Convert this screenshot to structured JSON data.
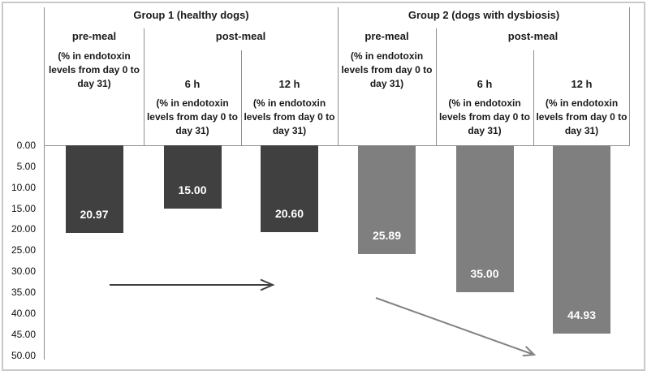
{
  "colors": {
    "group1_bar": "#404040",
    "group2_bar": "#7f7f7f",
    "group1_arrow": "#3f3f3f",
    "group2_arrow": "#828282",
    "bar_value_text": "#ffffff",
    "divider_line": "#8f8f8f",
    "outer_border": "#c9c9c9",
    "text": "#1a1a1a"
  },
  "header": {
    "note": "(% in endotoxin levels from day 0 to day 31)",
    "groups": [
      {
        "title": "Group 1 (healthy dogs)",
        "pre_meal_label": "pre-meal",
        "post_meal_label": "post-meal",
        "h6_label": "6 h",
        "h12_label": "12 h"
      },
      {
        "title": "Group 2 (dogs with dysbiosis)",
        "pre_meal_label": "pre-meal",
        "post_meal_label": "post-meal",
        "h6_label": "6 h",
        "h12_label": "12 h"
      }
    ]
  },
  "chart_data": {
    "type": "bar",
    "title": "",
    "xlabel": "",
    "ylabel": "",
    "value_axis_note": "axis increases downward; bars hang from 0.00 line",
    "ylim": [
      0,
      50
    ],
    "tick_values": [
      0,
      5,
      10,
      15,
      20,
      25,
      30,
      35,
      40,
      45,
      50
    ],
    "yticks": [
      "0.00",
      "5.00",
      "10.00",
      "15.00",
      "20.00",
      "25.00",
      "30.00",
      "35.00",
      "40.00",
      "45.00",
      "50.00"
    ],
    "grid": false,
    "legend": "none",
    "categories": [
      "Group 1 pre-meal",
      "Group 1 post-meal 6 h",
      "Group 1 post-meal 12 h",
      "Group 2 pre-meal",
      "Group 2 post-meal 6 h",
      "Group 2 post-meal 12 h"
    ],
    "series": [
      {
        "name": "Group 1 (healthy dogs)",
        "values": [
          20.97,
          15.0,
          20.6
        ],
        "labels": [
          "20.97",
          "15.00",
          "20.60"
        ],
        "color": "#404040"
      },
      {
        "name": "Group 2 (dogs with dysbiosis)",
        "values": [
          25.89,
          35.0,
          44.93
        ],
        "labels": [
          "25.89",
          "35.00",
          "44.93"
        ],
        "color": "#7f7f7f"
      }
    ],
    "annotations": [
      {
        "type": "arrow",
        "group": "Group 1 (healthy dogs)",
        "direction": "horizontal pointing right"
      },
      {
        "type": "arrow",
        "group": "Group 2 (dogs with dysbiosis)",
        "direction": "diagonal pointing down-right"
      }
    ]
  }
}
